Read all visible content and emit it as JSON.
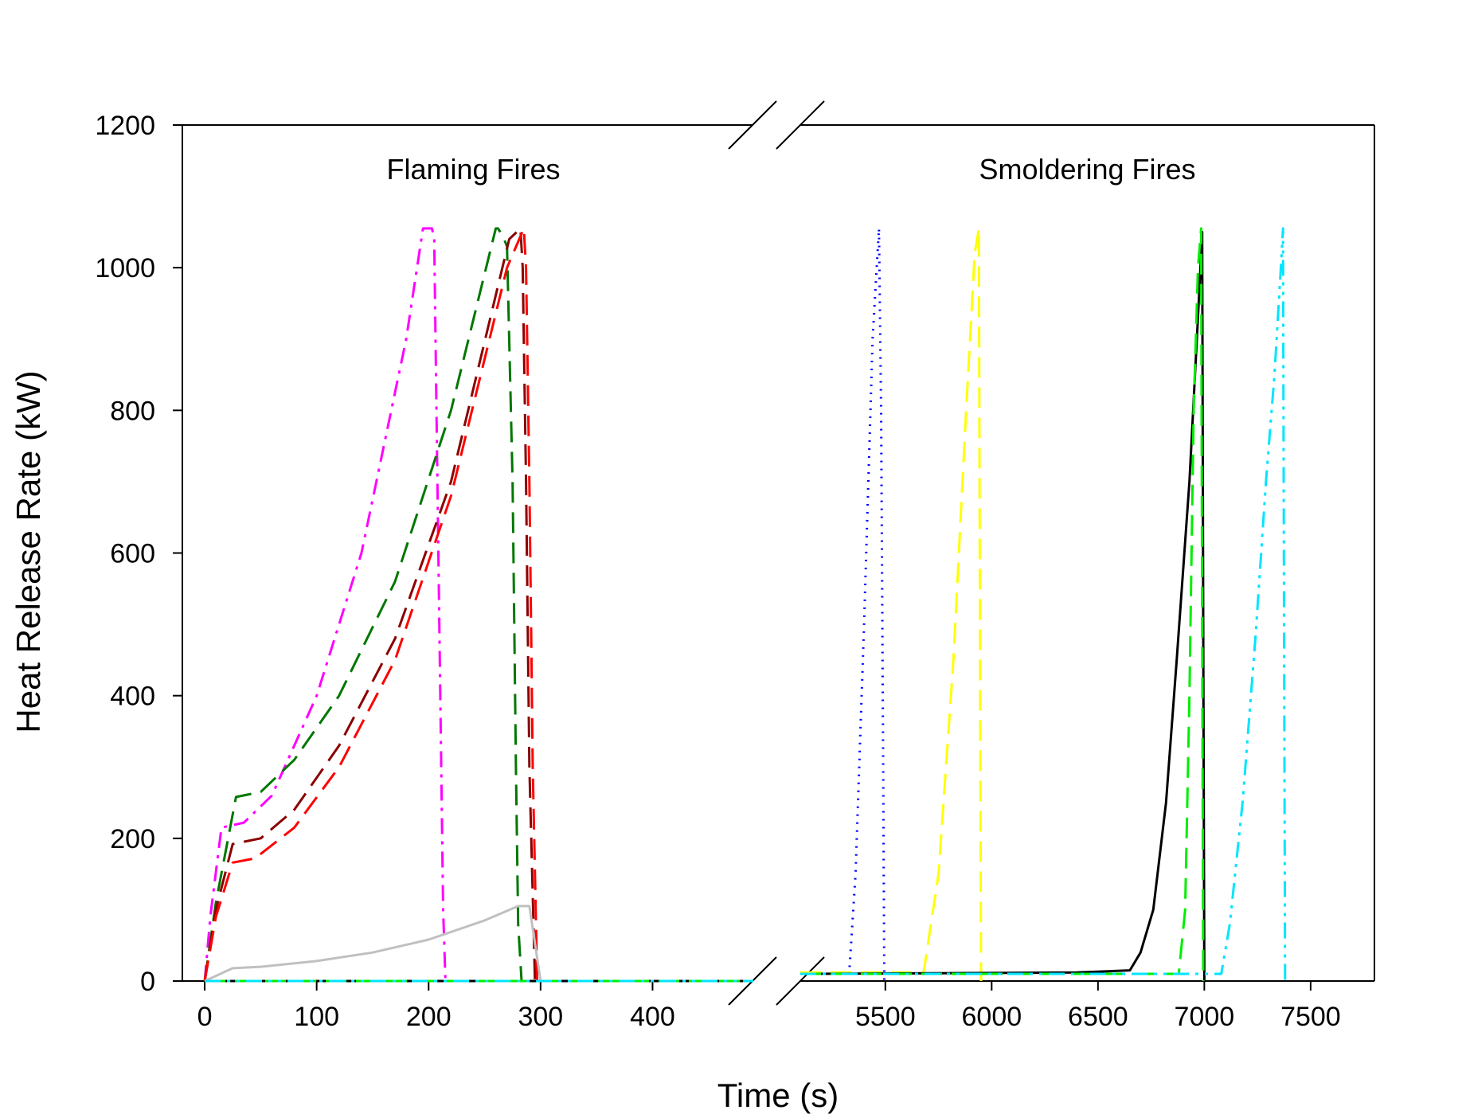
{
  "chart_data": {
    "type": "line",
    "xlabel": "Time (s)",
    "ylabel": "Heat Release Rate (kW)",
    "ylim": [
      0,
      1200
    ],
    "yticks": [
      0,
      200,
      400,
      600,
      800,
      1000,
      1200
    ],
    "grid": false,
    "axis_break": true,
    "panels": [
      {
        "label": "Flaming Fires",
        "xlim": [
          -10,
          490
        ],
        "xticks": [
          0,
          100,
          200,
          300,
          400
        ],
        "series": [
          {
            "color": "#ff00ff",
            "dash": "dashdot",
            "x": [
              0,
              5,
              15,
              35,
              60,
              100,
              140,
              180,
              195,
              203,
              205,
              207,
              210,
              213,
              215,
              490
            ],
            "y": [
              0,
              90,
              215,
              222,
              260,
              400,
              600,
              900,
              1055,
              1055,
              1040,
              800,
              450,
              100,
              0,
              0
            ]
          },
          {
            "color": "#007700",
            "dash": "dash",
            "x": [
              0,
              10,
              28,
              50,
              80,
              120,
              170,
              220,
              260,
              262,
              266,
              270,
              275,
              278,
              280,
              283,
              490
            ],
            "y": [
              0,
              110,
              258,
              265,
              310,
              400,
              560,
              800,
              1055,
              1055,
              1045,
              1030,
              700,
              300,
              80,
              0,
              0
            ]
          },
          {
            "color": "#8b0000",
            "dash": "dash",
            "x": [
              0,
              10,
              25,
              50,
              80,
              120,
              170,
              220,
              272,
              282,
              284,
              287,
              290,
              295,
              490
            ],
            "y": [
              0,
              100,
              192,
              200,
              240,
              330,
              480,
              700,
              1040,
              1055,
              1000,
              700,
              300,
              0,
              0
            ]
          },
          {
            "color": "#ff0000",
            "dash": "dash",
            "x": [
              0,
              10,
              25,
              45,
              80,
              120,
              170,
              220,
              270,
              285,
              287,
              290,
              293,
              297,
              490
            ],
            "y": [
              0,
              90,
              166,
              172,
              215,
              300,
              450,
              680,
              1000,
              1055,
              1000,
              700,
              300,
              0,
              0
            ]
          },
          {
            "color": "#c0c0c0",
            "dash": "solid",
            "x": [
              0,
              25,
              50,
              100,
              150,
              200,
              250,
              280,
              290,
              300,
              490
            ],
            "y": [
              0,
              18,
              20,
              28,
              40,
              58,
              85,
              105,
              105,
              0,
              0
            ]
          },
          {
            "color": "#ffff00",
            "dash": "dash",
            "x": [
              0,
              490
            ],
            "y": [
              0,
              0
            ]
          },
          {
            "color": "#0000ff",
            "dash": "dot",
            "x": [
              0,
              490
            ],
            "y": [
              0,
              0
            ]
          },
          {
            "color": "#000000",
            "dash": "solid",
            "x": [
              0,
              490
            ],
            "y": [
              0,
              0
            ]
          },
          {
            "color": "#00ee00",
            "dash": "dash",
            "x": [
              0,
              490
            ],
            "y": [
              0,
              0
            ]
          },
          {
            "color": "#00e5ff",
            "dash": "dashdotdot",
            "x": [
              0,
              490
            ],
            "y": [
              0,
              0
            ]
          }
        ]
      },
      {
        "label": "Smoldering Fires",
        "xlim": [
          5100,
          7800
        ],
        "xticks": [
          5500,
          6000,
          6500,
          7000,
          7500
        ],
        "series": [
          {
            "color": "#0000ff",
            "dash": "dot",
            "x": [
              5100,
              5330,
              5360,
              5400,
              5440,
              5470,
              5480,
              5490,
              5495
            ],
            "y": [
              10,
              10,
              150,
              500,
              900,
              1055,
              800,
              300,
              0
            ]
          },
          {
            "color": "#ffff00",
            "dash": "dash",
            "x": [
              5100,
              5680,
              5750,
              5820,
              5880,
              5920,
              5940,
              5945,
              5950
            ],
            "y": [
              12,
              12,
              150,
              450,
              800,
              1020,
              1055,
              500,
              0
            ]
          },
          {
            "color": "#000000",
            "dash": "solid",
            "x": [
              5100,
              6400,
              6650,
              6700,
              6760,
              6820,
              6870,
              6930,
              6970,
              6990,
              6995,
              7000
            ],
            "y": [
              10,
              12,
              15,
              40,
              100,
              250,
              450,
              700,
              930,
              1050,
              500,
              0
            ]
          },
          {
            "color": "#00ee00",
            "dash": "dash",
            "x": [
              5100,
              6880,
              6910,
              6930,
              6950,
              6970,
              6985,
              6990,
              6995
            ],
            "y": [
              10,
              10,
              100,
              400,
              800,
              1000,
              1055,
              500,
              0
            ]
          },
          {
            "color": "#00e5ff",
            "dash": "dashdotdot",
            "x": [
              5100,
              7080,
              7120,
              7180,
              7240,
              7290,
              7330,
              7360,
              7370,
              7375,
              7380
            ],
            "y": [
              10,
              10,
              80,
              250,
              480,
              700,
              850,
              1000,
              1055,
              500,
              0
            ]
          }
        ]
      }
    ]
  }
}
